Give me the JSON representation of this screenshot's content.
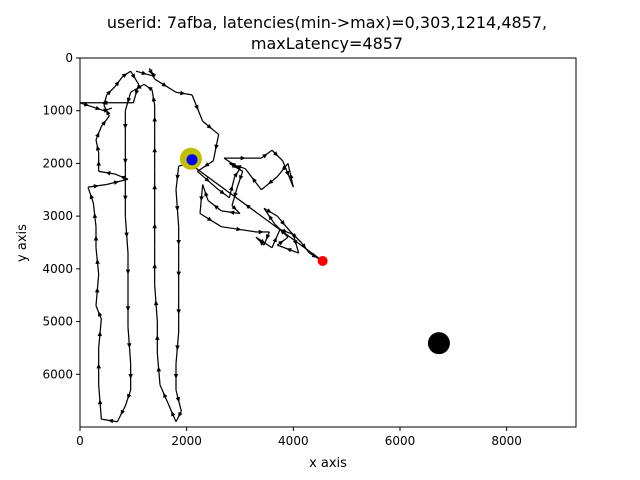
{
  "chart_data": {
    "type": "line",
    "title_line1": "userid: 7afba, latencies(min->max)=0,303,1214,4857,",
    "title_line2": "maxLatency=4857",
    "xlabel": "x axis",
    "ylabel": "y axis",
    "xlim": [
      0,
      9300
    ],
    "ylim": [
      7000,
      0
    ],
    "x_ticks": [
      0,
      2000,
      4000,
      6000,
      8000
    ],
    "y_ticks": [
      0,
      1000,
      2000,
      3000,
      4000,
      5000,
      6000
    ],
    "grid": false,
    "legend": "none",
    "colors": {
      "path": "#000000",
      "target_large": "#bfbf00",
      "target_small": "#0000ff",
      "end_point": "#ff0000",
      "reference_point": "#000000"
    },
    "path": [
      [
        1050,
        250
      ],
      [
        1400,
        350
      ],
      [
        1300,
        200
      ],
      [
        1400,
        400
      ],
      [
        1800,
        650
      ],
      [
        2100,
        700
      ],
      [
        2300,
        1200
      ],
      [
        2600,
        1450
      ],
      [
        2500,
        1950
      ],
      [
        2200,
        2150
      ],
      [
        2600,
        2500
      ],
      [
        2800,
        2650
      ],
      [
        2900,
        2250
      ],
      [
        3000,
        2100
      ],
      [
        2700,
        1900
      ],
      [
        3400,
        1900
      ],
      [
        3600,
        1750
      ],
      [
        3800,
        1950
      ],
      [
        4000,
        2450
      ],
      [
        3900,
        2000
      ],
      [
        3700,
        2250
      ],
      [
        3400,
        2500
      ],
      [
        3100,
        2100
      ],
      [
        2800,
        2000
      ],
      [
        3050,
        2150
      ],
      [
        2950,
        2450
      ],
      [
        2850,
        2800
      ],
      [
        3000,
        2950
      ],
      [
        2650,
        2900
      ],
      [
        2400,
        2700
      ],
      [
        2300,
        2400
      ],
      [
        2250,
        2950
      ],
      [
        2650,
        3200
      ],
      [
        3300,
        3300
      ],
      [
        3550,
        3300
      ],
      [
        3450,
        3550
      ],
      [
        3300,
        3400
      ],
      [
        3600,
        3600
      ],
      [
        3750,
        3250
      ],
      [
        4000,
        3350
      ],
      [
        4100,
        3700
      ],
      [
        3700,
        3550
      ],
      [
        3900,
        3400
      ],
      [
        3650,
        3150
      ],
      [
        3450,
        2850
      ],
      [
        3700,
        3000
      ],
      [
        3950,
        3300
      ],
      [
        4150,
        3500
      ],
      [
        4300,
        3700
      ],
      [
        4550,
        3850
      ],
      [
        2050,
        2000
      ],
      [
        1850,
        2050
      ],
      [
        1800,
        2500
      ],
      [
        1850,
        3200
      ],
      [
        1850,
        3800
      ],
      [
        1850,
        4400
      ],
      [
        1850,
        5200
      ],
      [
        1800,
        5800
      ],
      [
        1800,
        6300
      ],
      [
        1900,
        6700
      ],
      [
        1800,
        6900
      ],
      [
        1650,
        6550
      ],
      [
        1500,
        6200
      ],
      [
        1450,
        5600
      ],
      [
        1450,
        5000
      ],
      [
        1400,
        4300
      ],
      [
        1400,
        3600
      ],
      [
        1400,
        2800
      ],
      [
        1400,
        2100
      ],
      [
        1400,
        1400
      ],
      [
        1400,
        900
      ],
      [
        1350,
        600
      ],
      [
        1200,
        500
      ],
      [
        950,
        650
      ],
      [
        850,
        1000
      ],
      [
        850,
        1600
      ],
      [
        850,
        2300
      ],
      [
        850,
        3000
      ],
      [
        900,
        3700
      ],
      [
        900,
        4400
      ],
      [
        900,
        5100
      ],
      [
        950,
        5800
      ],
      [
        950,
        6300
      ],
      [
        850,
        6600
      ],
      [
        700,
        6900
      ],
      [
        400,
        6850
      ],
      [
        350,
        6200
      ],
      [
        350,
        5500
      ],
      [
        400,
        4950
      ],
      [
        300,
        4700
      ],
      [
        350,
        4100
      ],
      [
        300,
        3600
      ],
      [
        300,
        3200
      ],
      [
        250,
        2750
      ],
      [
        150,
        2450
      ],
      [
        500,
        2400
      ],
      [
        900,
        2300
      ],
      [
        650,
        2200
      ],
      [
        350,
        2150
      ],
      [
        350,
        1800
      ],
      [
        300,
        1550
      ],
      [
        400,
        1300
      ],
      [
        550,
        1100
      ],
      [
        450,
        900
      ],
      [
        500,
        700
      ],
      [
        650,
        550
      ],
      [
        800,
        350
      ],
      [
        950,
        250
      ],
      [
        1100,
        500
      ],
      [
        1000,
        850
      ],
      [
        0,
        850
      ],
      [
        300,
        950
      ],
      [
        450,
        1000
      ],
      [
        600,
        950
      ]
    ],
    "target_large": {
      "x": 2080,
      "y": 1910
    },
    "target_small": {
      "x": 2100,
      "y": 1930
    },
    "end_point": {
      "x": 4550,
      "y": 3850
    },
    "reference_point": {
      "x": 6730,
      "y": 5410
    }
  }
}
